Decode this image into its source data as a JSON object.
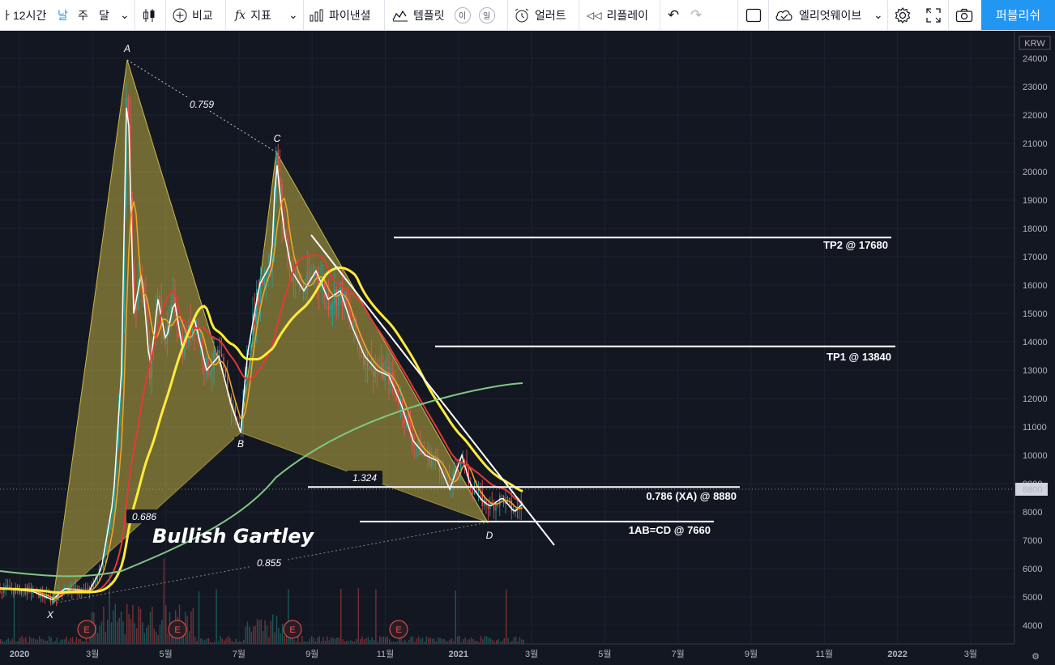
{
  "toolbar": {
    "symbol_fragment": "ㅏ",
    "interval": "12시간",
    "day": "날",
    "week": "주",
    "month": "달",
    "compare": "비교",
    "indicators": "지표",
    "financials": "파이낸셜",
    "templates": "템플릿",
    "badge_a": "이",
    "badge_b": "일",
    "alert": "얼러트",
    "replay": "리플레이",
    "elliott": "엘리엇웨이브",
    "publish": "퍼블리쉬"
  },
  "price_axis": {
    "currency": "KRW",
    "ticks": [
      "24000",
      "23000",
      "22000",
      "21000",
      "20000",
      "19000",
      "18000",
      "17000",
      "16000",
      "15000",
      "14000",
      "13000",
      "12000",
      "11000",
      "10000",
      "9000",
      "8000",
      "7000",
      "6000",
      "5000",
      "4000"
    ],
    "current_price": "8800"
  },
  "time_axis": {
    "ticks": [
      "2020",
      "3월",
      "5월",
      "7월",
      "9월",
      "11월",
      "2021",
      "3월",
      "5월",
      "7월",
      "9월",
      "11월",
      "2022",
      "3월"
    ]
  },
  "pattern": {
    "title": "Bullish Gartley",
    "points": [
      "X",
      "A",
      "B",
      "C",
      "D"
    ],
    "ratios": {
      "xb": "0.686",
      "ac": "0.759",
      "bd": "1.324",
      "xd": "0.855"
    }
  },
  "levels": [
    {
      "label": "TP2 @ 17680",
      "price": 17680
    },
    {
      "label": "TP1 @ 13840",
      "price": 13840
    },
    {
      "label": "0.786 (XA) @ 8880",
      "price": 8880
    },
    {
      "label": "1AB=CD @ 7660",
      "price": 7660
    }
  ],
  "earnings_marker": "E",
  "colors": {
    "background": "#131722",
    "pattern_fill": "#b5a642",
    "ma_fast": "#f5a623",
    "ma_mid": "#ffeb3b",
    "ma_red": "#e53935",
    "ma_green": "#81c784",
    "publish": "#2196f3"
  }
}
